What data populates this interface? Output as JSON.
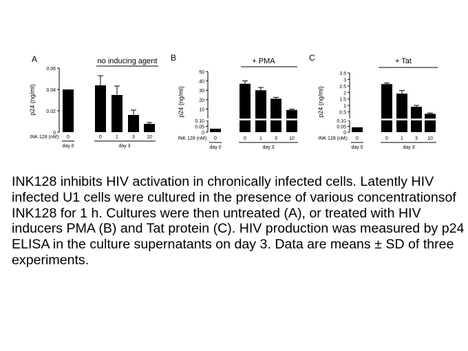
{
  "caption": "INK128 inhibits HIV activation in chronically infected cells. Latently HIV infected U1 cells were cultured in the presence of various concentrationsof INK128 for 1 h. Cultures were then untreated (A), or treated with HIV inducers PMA (B) and Tat protein (C). HIV production was measured by p24 ELISA in the culture supernatants on day 3. Data are means ± SD of three experiments.",
  "chart_data": [
    {
      "type": "bar",
      "panel_label": "A",
      "condition": "no inducing agent",
      "ylabel": "p24 (ng/ml)",
      "xlabel": "INK 128 (nM):",
      "categories": [
        "0",
        "0",
        "1",
        "3",
        "10"
      ],
      "groups": [
        "day 0",
        "day 3"
      ],
      "values": [
        0.04,
        0.044,
        0.035,
        0.016,
        0.008
      ],
      "errors": [
        0,
        0.007,
        0.008,
        0.004,
        0.001
      ],
      "ylim": [
        0,
        0.06
      ],
      "yticks": [
        "0",
        "0.02",
        "0.04",
        "0.06"
      ],
      "grid": false
    },
    {
      "type": "bar",
      "panel_label": "B",
      "condition": "+ PMA",
      "ylabel": "p24 (ng/ml)",
      "xlabel": "INK 128 (nM):",
      "categories": [
        "0",
        "0",
        "1",
        "3",
        "10"
      ],
      "groups": [
        "day 0",
        "day 3"
      ],
      "values": [
        0.03,
        37,
        30,
        21,
        9
      ],
      "errors": [
        0,
        4,
        3,
        1.5,
        0.8
      ],
      "axis_break": true,
      "ylim_lower": [
        0,
        0.1
      ],
      "ylim_upper": [
        0,
        50
      ],
      "yticks": [
        "0",
        "0.05",
        "0.10",
        "10",
        "20",
        "30",
        "40",
        "50"
      ],
      "grid": false
    },
    {
      "type": "bar",
      "panel_label": "C",
      "condition": "+ Tat",
      "ylabel": "p24 (ng/ml)",
      "xlabel": "INK 128 (nM):",
      "categories": [
        "0",
        "0",
        "1",
        "3",
        "10"
      ],
      "groups": [
        "day 0",
        "day 3"
      ],
      "values": [
        0.04,
        2.7,
        2.0,
        1.0,
        0.45
      ],
      "errors": [
        0,
        0.08,
        0.25,
        0.1,
        0.06
      ],
      "axis_break": true,
      "ylim_lower": [
        0,
        0.1
      ],
      "ylim_upper": [
        0,
        3.5
      ],
      "yticks": [
        "0",
        "0.05",
        "0.10",
        "0.5",
        "1",
        "1.5",
        "2",
        "2.5",
        "3",
        "3.5"
      ],
      "grid": false
    }
  ]
}
